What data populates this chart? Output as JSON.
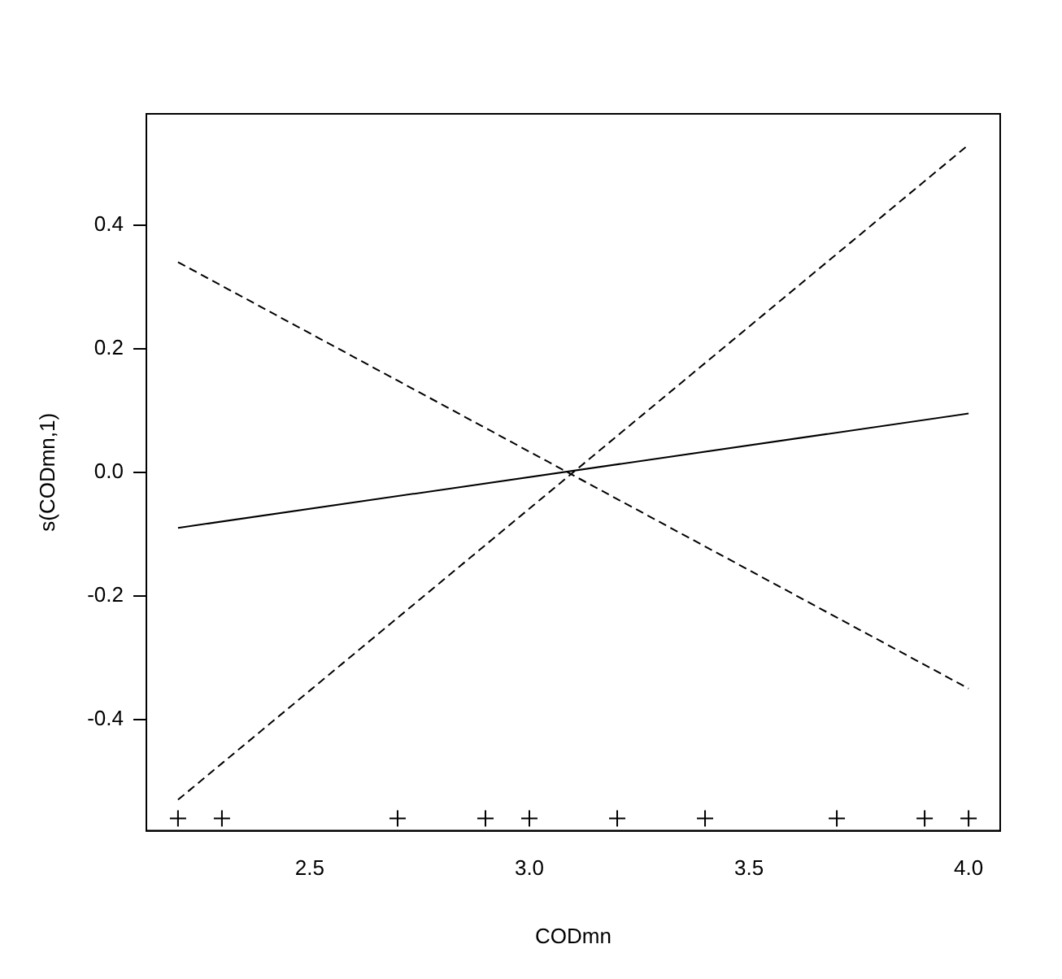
{
  "chart_data": {
    "type": "line",
    "xlabel": "CODmn",
    "ylabel": "s(CODmn,1)",
    "xlim": [
      2.128,
      4.072
    ],
    "ylim": [
      -0.58,
      0.58
    ],
    "xticks": [
      2.5,
      {
        "value": 3,
        "label": "3.0"
      },
      3.5,
      {
        "value": 4,
        "label": "4.0"
      }
    ],
    "yticks": [
      -0.4,
      -0.2,
      {
        "value": 0,
        "label": "0.0"
      },
      0.2,
      0.4
    ],
    "grid": false,
    "legend": false,
    "marker": "none",
    "series": [
      {
        "x": [
          2.2,
          4.0
        ],
        "values": [
          -0.09,
          0.095
        ],
        "color": "#000000",
        "line_style": "solid"
      },
      {
        "x": [
          2.2,
          4.0
        ],
        "values": [
          0.34,
          -0.35
        ],
        "color": "#000000",
        "line_style": "dashed"
      },
      {
        "x": [
          2.2,
          4.0
        ],
        "values": [
          -0.53,
          0.53
        ],
        "color": "#000000",
        "line_style": "dashed"
      },
      {
        "type": "scatter",
        "x": [
          2.2,
          2.3,
          2.7,
          2.9,
          3.0,
          3.2,
          3.4,
          3.7,
          3.9,
          4.0
        ],
        "values": [
          -0.56,
          -0.56,
          -0.56,
          -0.56,
          -0.56,
          -0.56,
          -0.56,
          -0.56,
          -0.56,
          -0.56
        ],
        "color": "#000000",
        "marker": "cross"
      }
    ]
  }
}
